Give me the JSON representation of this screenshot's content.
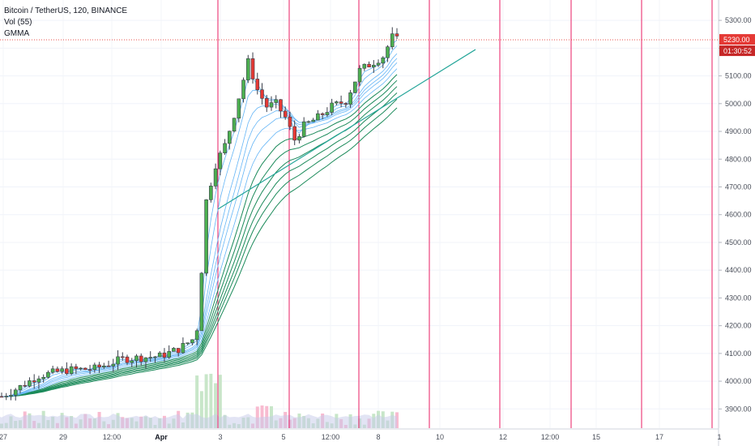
{
  "legend": {
    "symbol": "Bitcoin / TetherUS, 120, BINANCE",
    "volume": "Vol (55)",
    "indicator": "GMMA"
  },
  "price_label": "5230.00",
  "countdown_label": "01:30:52",
  "colors": {
    "vline": "#e91e63",
    "bull": "#4caf50",
    "bear": "#e53935",
    "candle": "#3a3f4b",
    "gmma_short": "#64b5f6",
    "gmma_long": "#1b8a5a",
    "trendline": "#26a69a",
    "price_line": "#e53935",
    "volume_bull": "#c8e6c9",
    "volume_bear": "#f8bbd0",
    "volume_ma": "#c5cae9"
  },
  "chart_data": {
    "type": "candlestick",
    "ylim": [
      3860,
      5350
    ],
    "y_ticks": [
      "5300.00",
      "5200.00",
      "5100.00",
      "5000.00",
      "4900.00",
      "4800.00",
      "4700.00",
      "4600.00",
      "4500.00",
      "4400.00",
      "4300.00",
      "4200.00",
      "4100.00",
      "4000.00",
      "3900.00"
    ],
    "x_ticks": [
      {
        "label": "27",
        "bold": false
      },
      {
        "label": "29",
        "bold": false
      },
      {
        "label": "12:00",
        "bold": false
      },
      {
        "label": "Apr",
        "bold": true
      },
      {
        "label": "3",
        "bold": false
      },
      {
        "label": "5",
        "bold": false
      },
      {
        "label": "12:00",
        "bold": false
      },
      {
        "label": "8",
        "bold": false
      },
      {
        "label": "10",
        "bold": false
      },
      {
        "label": "12",
        "bold": false
      },
      {
        "label": "12:00",
        "bold": false
      },
      {
        "label": "15",
        "bold": false
      },
      {
        "label": "17",
        "bold": false
      },
      {
        "label": "1",
        "bold": false
      }
    ],
    "price_path": [
      [
        0,
        3945
      ],
      [
        4,
        3980
      ],
      [
        8,
        4020
      ],
      [
        14,
        4040
      ],
      [
        20,
        4045
      ],
      [
        26,
        4080
      ],
      [
        30,
        4085
      ],
      [
        34,
        4090
      ],
      [
        38,
        4115
      ],
      [
        41,
        4150
      ],
      [
        42,
        4190
      ],
      [
        43,
        4400
      ],
      [
        44,
        4650
      ],
      [
        46,
        4780
      ],
      [
        48,
        4850
      ],
      [
        50,
        4960
      ],
      [
        53,
        5150
      ],
      [
        55,
        5050
      ],
      [
        57,
        4990
      ],
      [
        59,
        5000
      ],
      [
        61,
        4950
      ],
      [
        63,
        4870
      ],
      [
        65,
        4920
      ],
      [
        68,
        4950
      ],
      [
        71,
        4990
      ],
      [
        74,
        5010
      ],
      [
        77,
        5120
      ],
      [
        80,
        5150
      ],
      [
        82,
        5170
      ],
      [
        84,
        5240
      ],
      [
        85,
        5230
      ]
    ],
    "candle_count": 86,
    "gmma_short_offsets": [
      0,
      -15,
      -30,
      -45,
      -60,
      -75
    ],
    "gmma_long_offsets": [
      -110,
      -150,
      -190,
      -230,
      -270,
      -310
    ],
    "trendline": [
      [
        4700,
        4620
      ],
      [
        5180,
        5195
      ]
    ],
    "current_price": 5230
  }
}
